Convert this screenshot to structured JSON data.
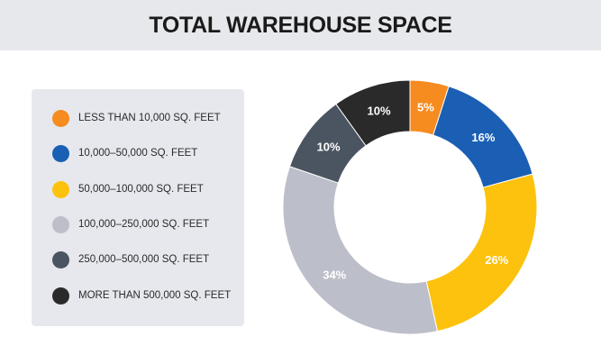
{
  "title": "TOTAL WAREHOUSE SPACE",
  "chart_data": {
    "type": "pie",
    "title": "TOTAL WAREHOUSE SPACE",
    "donut": true,
    "categories": [
      "LESS THAN 10,000 SQ. FEET",
      "10,000–50,000 SQ. FEET",
      "50,000–100,000 SQ. FEET",
      "100,000–250,000 SQ. FEET",
      "250,000–500,000 SQ. FEET",
      "MORE THAN 500,000 SQ. FEET"
    ],
    "values": [
      5,
      16,
      26,
      34,
      10,
      10
    ],
    "value_labels": [
      "5%",
      "16%",
      "26%",
      "34%",
      "10%",
      "10%"
    ],
    "colors": [
      "#f68b1f",
      "#1a5fb4",
      "#fdc20e",
      "#bcbfc9",
      "#4b5562",
      "#2a2a2a"
    ],
    "legend_position": "left"
  }
}
